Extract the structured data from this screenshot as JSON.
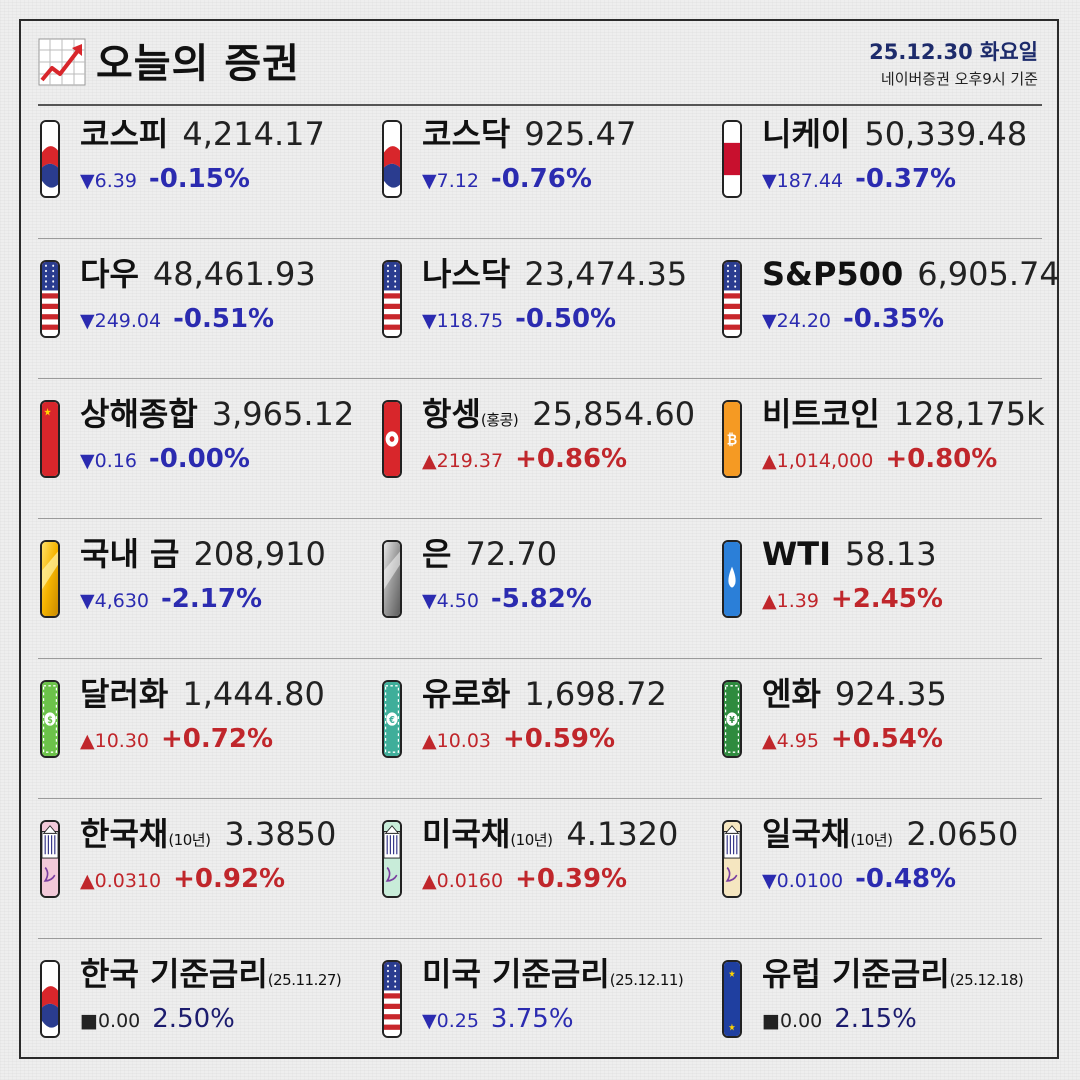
{
  "header": {
    "title": "오늘의 증권",
    "date": "25.12.30 화요일",
    "basis": "네이버증권 오후9시 기준"
  },
  "items": [
    {
      "name": "코스피",
      "sub": "",
      "value": "4,214.17",
      "change": "▼6.39",
      "pct": "-0.15%",
      "dir": "down",
      "flag": "kr"
    },
    {
      "name": "코스닥",
      "sub": "",
      "value": "925.47",
      "change": "▼7.12",
      "pct": "-0.76%",
      "dir": "down",
      "flag": "kr"
    },
    {
      "name": "니케이",
      "sub": "",
      "value": "50,339.48",
      "change": "▼187.44",
      "pct": "-0.37%",
      "dir": "down",
      "flag": "jp"
    },
    {
      "name": "다우",
      "sub": "",
      "value": "48,461.93",
      "change": "▼249.04",
      "pct": "-0.51%",
      "dir": "down",
      "flag": "us"
    },
    {
      "name": "나스닥",
      "sub": "",
      "value": "23,474.35",
      "change": "▼118.75",
      "pct": "-0.50%",
      "dir": "down",
      "flag": "us"
    },
    {
      "name": "S&P500",
      "sub": "",
      "value": "6,905.74",
      "change": "▼24.20",
      "pct": "-0.35%",
      "dir": "down",
      "flag": "us"
    },
    {
      "name": "상해종합",
      "sub": "",
      "value": "3,965.12",
      "change": "▼0.16",
      "pct": "-0.00%",
      "dir": "down",
      "flag": "cn"
    },
    {
      "name": "항셍",
      "sub": "(홍콩)",
      "value": "25,854.60",
      "change": "▲219.37",
      "pct": "+0.86%",
      "dir": "up",
      "flag": "hk"
    },
    {
      "name": "비트코인",
      "sub": "",
      "value": "128,175k",
      "change": "▲1,014,000",
      "pct": "+0.80%",
      "dir": "up",
      "flag": "btc"
    },
    {
      "name": "국내 금",
      "sub": "",
      "value": "208,910",
      "change": "▼4,630",
      "pct": "-2.17%",
      "dir": "down",
      "flag": "gold"
    },
    {
      "name": "은",
      "sub": "",
      "value": "72.70",
      "change": "▼4.50",
      "pct": "-5.82%",
      "dir": "down",
      "flag": "silver"
    },
    {
      "name": "WTI",
      "sub": "",
      "value": "58.13",
      "change": "▲1.39",
      "pct": "+2.45%",
      "dir": "up",
      "flag": "oil"
    },
    {
      "name": "달러화",
      "sub": "",
      "value": "1,444.80",
      "change": "▲10.30",
      "pct": "+0.72%",
      "dir": "up",
      "flag": "usd"
    },
    {
      "name": "유로화",
      "sub": "",
      "value": "1,698.72",
      "change": "▲10.03",
      "pct": "+0.59%",
      "dir": "up",
      "flag": "eur"
    },
    {
      "name": "엔화",
      "sub": "",
      "value": "924.35",
      "change": "▲4.95",
      "pct": "+0.54%",
      "dir": "up",
      "flag": "jpy"
    },
    {
      "name": "한국채",
      "sub": "(10년)",
      "value": "3.3850",
      "change": "▲0.0310",
      "pct": "+0.92%",
      "dir": "up",
      "flag": "bond-kr"
    },
    {
      "name": "미국채",
      "sub": "(10년)",
      "value": "4.1320",
      "change": "▲0.0160",
      "pct": "+0.39%",
      "dir": "up",
      "flag": "bond-us"
    },
    {
      "name": "일국채",
      "sub": "(10년)",
      "value": "2.0650",
      "change": "▼0.0100",
      "pct": "-0.48%",
      "dir": "down",
      "flag": "bond-jp"
    },
    {
      "name": "한국 기준금리",
      "sub": "(25.11.27)",
      "value": "",
      "change": "■0.00",
      "pct": "2.50%",
      "dir": "flat",
      "flag": "kr"
    },
    {
      "name": "미국 기준금리",
      "sub": "(25.12.11)",
      "value": "",
      "change": "▼0.25",
      "pct": "3.75%",
      "dir": "rate-down",
      "flag": "us"
    },
    {
      "name": "유럽 기준금리",
      "sub": "(25.12.18)",
      "value": "",
      "change": "■0.00",
      "pct": "2.15%",
      "dir": "flat",
      "flag": "eu"
    }
  ]
}
